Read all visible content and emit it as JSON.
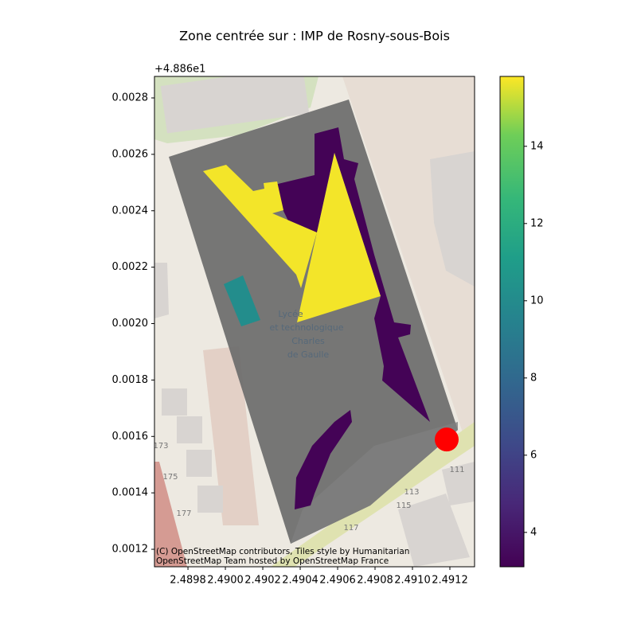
{
  "chart_data": {
    "type": "map",
    "title": "Zone centrée sur : IMP de Rosny-sous-Bois",
    "y_offset_label": "+4.886e1",
    "xlim": [
      2.489621,
      2.491332
    ],
    "ylim": [
      0.001138,
      0.0028762
    ],
    "xticks": [
      2.4898,
      {
        "value": 2.49,
        "label": "2.4900"
      },
      2.4902,
      2.4904,
      2.4906,
      2.4908,
      {
        "value": 2.491,
        "label": "2.4910"
      },
      2.4912
    ],
    "yticks": [
      0.0012,
      0.0014,
      0.0016,
      0.0018,
      {
        "value": 0.002,
        "label": "0.0020"
      },
      0.0022,
      0.0024,
      0.0026,
      0.0028
    ],
    "zones": [
      {
        "value": 3.2
      },
      {
        "value": 3.2
      },
      {
        "value": 15.7
      },
      {
        "value": 15.7
      },
      {
        "value": 10.1
      }
    ],
    "marker": {
      "x": 2.491183,
      "y": 0.001589,
      "color": "#ff0000"
    },
    "colorbar": {
      "colormap": "viridis",
      "lim": [
        3.11,
        15.81
      ],
      "ticks": [
        4,
        6,
        8,
        10,
        12,
        14
      ]
    },
    "map_labels": [
      "Lycée",
      "et technologique",
      "Charles",
      "de Gaulle",
      "173",
      "175",
      "177",
      "111",
      "113",
      "115",
      "117"
    ],
    "attribution": [
      "(C) OpenStreetMap contributors, Tiles style by Humanitarian",
      "OpenStreetMap Team hosted by OpenStreetMap France"
    ]
  }
}
